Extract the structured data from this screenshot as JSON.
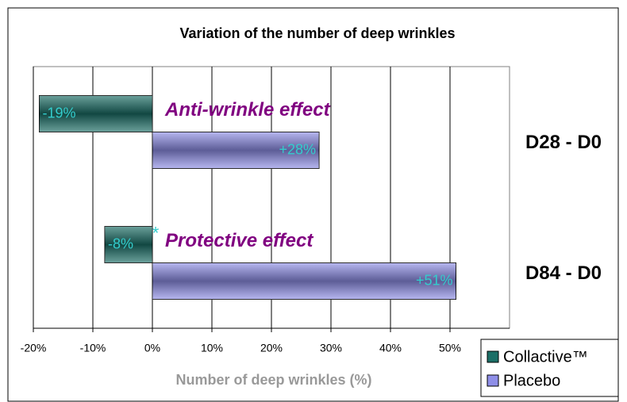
{
  "chart_data": {
    "type": "bar",
    "orientation": "horizontal",
    "title": "Variation of the number of deep wrinkles",
    "xlabel": "Number of deep wrinkles (%)",
    "categories": [
      "D28 - D0",
      "D84 - D0"
    ],
    "series": [
      {
        "name": "Collactive™",
        "color": "#1b6e66",
        "values": [
          -19,
          -8
        ],
        "value_labels": [
          "-19%",
          "-8%"
        ]
      },
      {
        "name": "Placebo",
        "color": "#8f8fe8",
        "values": [
          28,
          51
        ],
        "value_labels": [
          "+28%",
          "+51%"
        ]
      }
    ],
    "xlim": [
      -20,
      60
    ],
    "xticks": [
      {
        "value": -20,
        "label": "-20%"
      },
      {
        "value": -10,
        "label": "-10%"
      },
      {
        "value": 0,
        "label": "0%"
      },
      {
        "value": 10,
        "label": "10%"
      },
      {
        "value": 20,
        "label": "20%"
      },
      {
        "value": 30,
        "label": "30%"
      },
      {
        "value": 40,
        "label": "40%"
      },
      {
        "value": 50,
        "label": "50%"
      }
    ],
    "annotations": [
      "Anti-wrinkle effect",
      "Protective effect",
      "*"
    ],
    "grid": true,
    "legend": "bottom-right"
  }
}
